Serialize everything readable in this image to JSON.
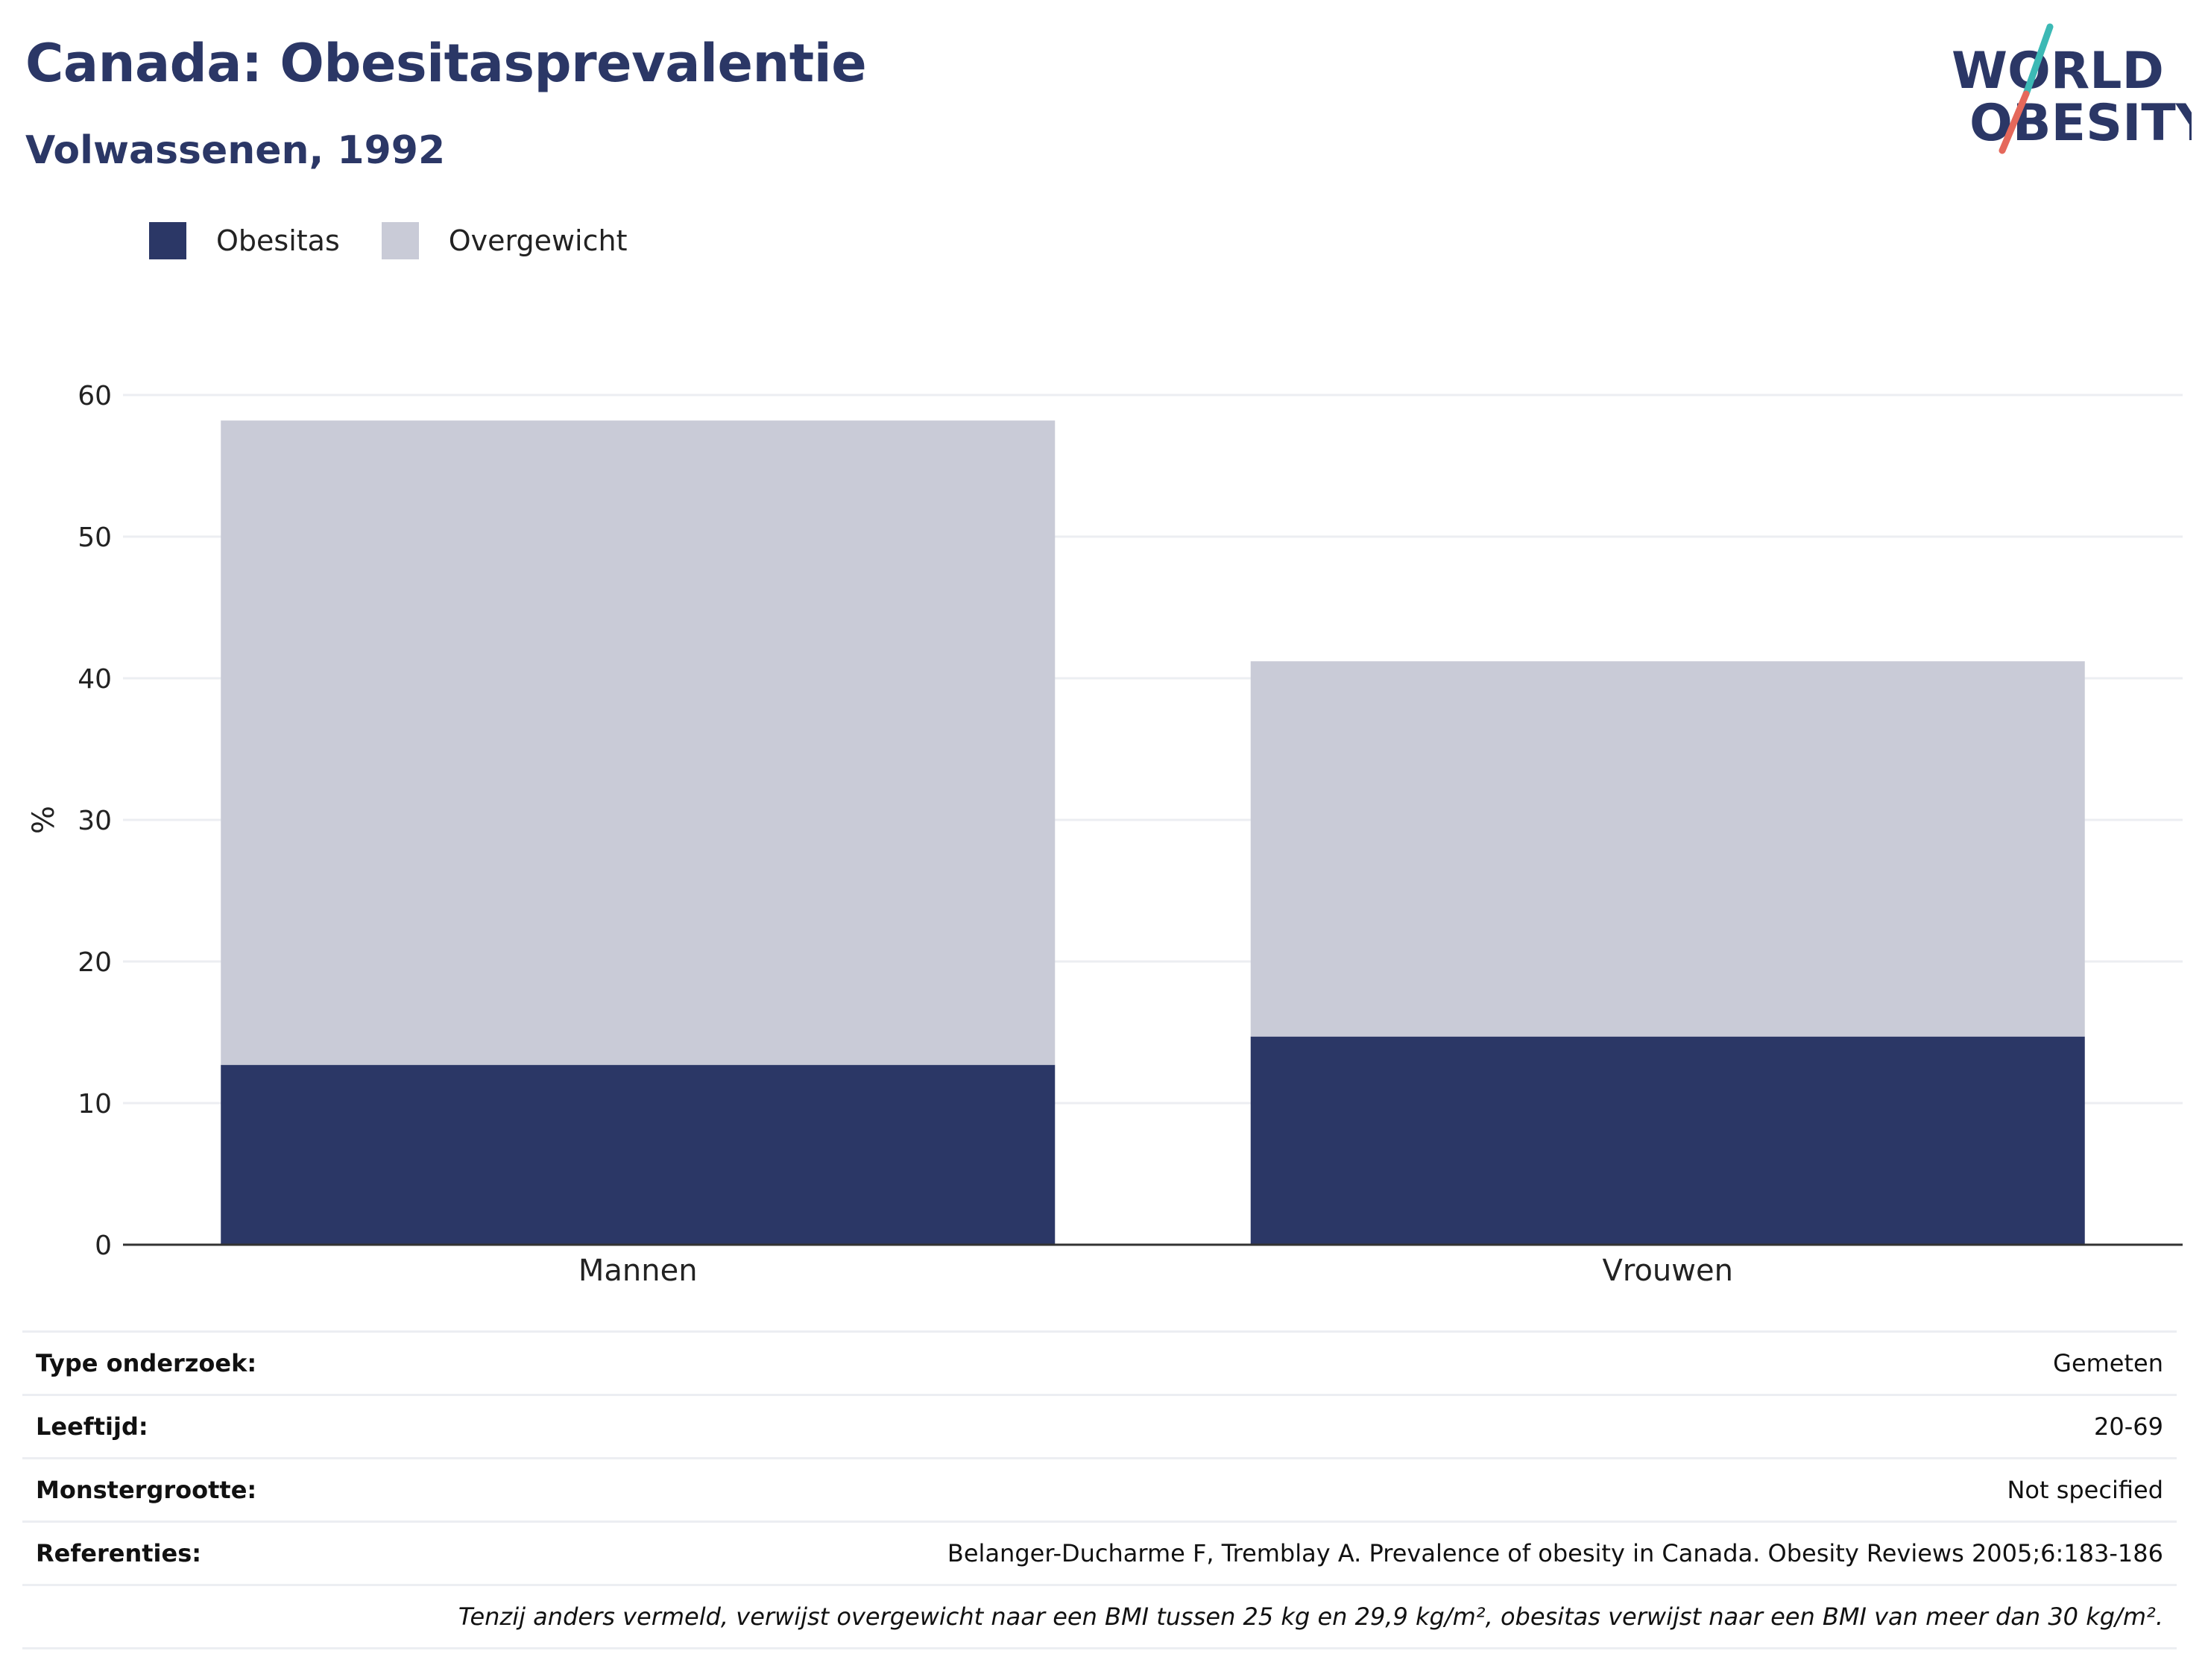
{
  "header": {
    "title": "Canada: Obesitasprevalentie",
    "subtitle": "Volwassenen, 1992"
  },
  "logo": {
    "line1": "WORLD",
    "line2": "OBESITY",
    "colors": {
      "navy": "#2b3766",
      "teal": "#3cb9b5",
      "coral": "#e5685b"
    }
  },
  "colors": {
    "obesitas": "#2b3766",
    "overgewicht": "#c9cbd7",
    "grid": "#eceef2",
    "axis": "#333333"
  },
  "legend": [
    {
      "label": "Obesitas",
      "color": "#2b3766"
    },
    {
      "label": "Overgewicht",
      "color": "#c9cbd7"
    }
  ],
  "chart_data": {
    "type": "bar",
    "stacked": true,
    "categories": [
      "Mannen",
      "Vrouwen"
    ],
    "series": [
      {
        "name": "Obesitas",
        "values": [
          12.7,
          14.7
        ]
      },
      {
        "name": "Overgewicht",
        "values": [
          45.5,
          26.5
        ]
      }
    ],
    "title": "",
    "xlabel": "",
    "ylabel": "%",
    "ylim": [
      0,
      60
    ],
    "yticks": [
      0,
      10,
      20,
      30,
      40,
      50,
      60
    ],
    "grid": true,
    "legend_position": "top-left"
  },
  "info": {
    "rows": [
      {
        "key": "Type onderzoek:",
        "value": "Gemeten"
      },
      {
        "key": "Leeftijd:",
        "value": "20-69"
      },
      {
        "key": "Monstergrootte:",
        "value": "Not specified"
      },
      {
        "key": "Referenties:",
        "value": "Belanger-Ducharme F, Tremblay A. Prevalence of obesity in Canada. Obesity Reviews 2005;6:183-186"
      }
    ],
    "note": "Tenzij anders vermeld, verwijst overgewicht naar een BMI tussen 25 kg en 29,9 kg/m², obesitas verwijst naar een BMI van meer dan 30 kg/m²."
  }
}
